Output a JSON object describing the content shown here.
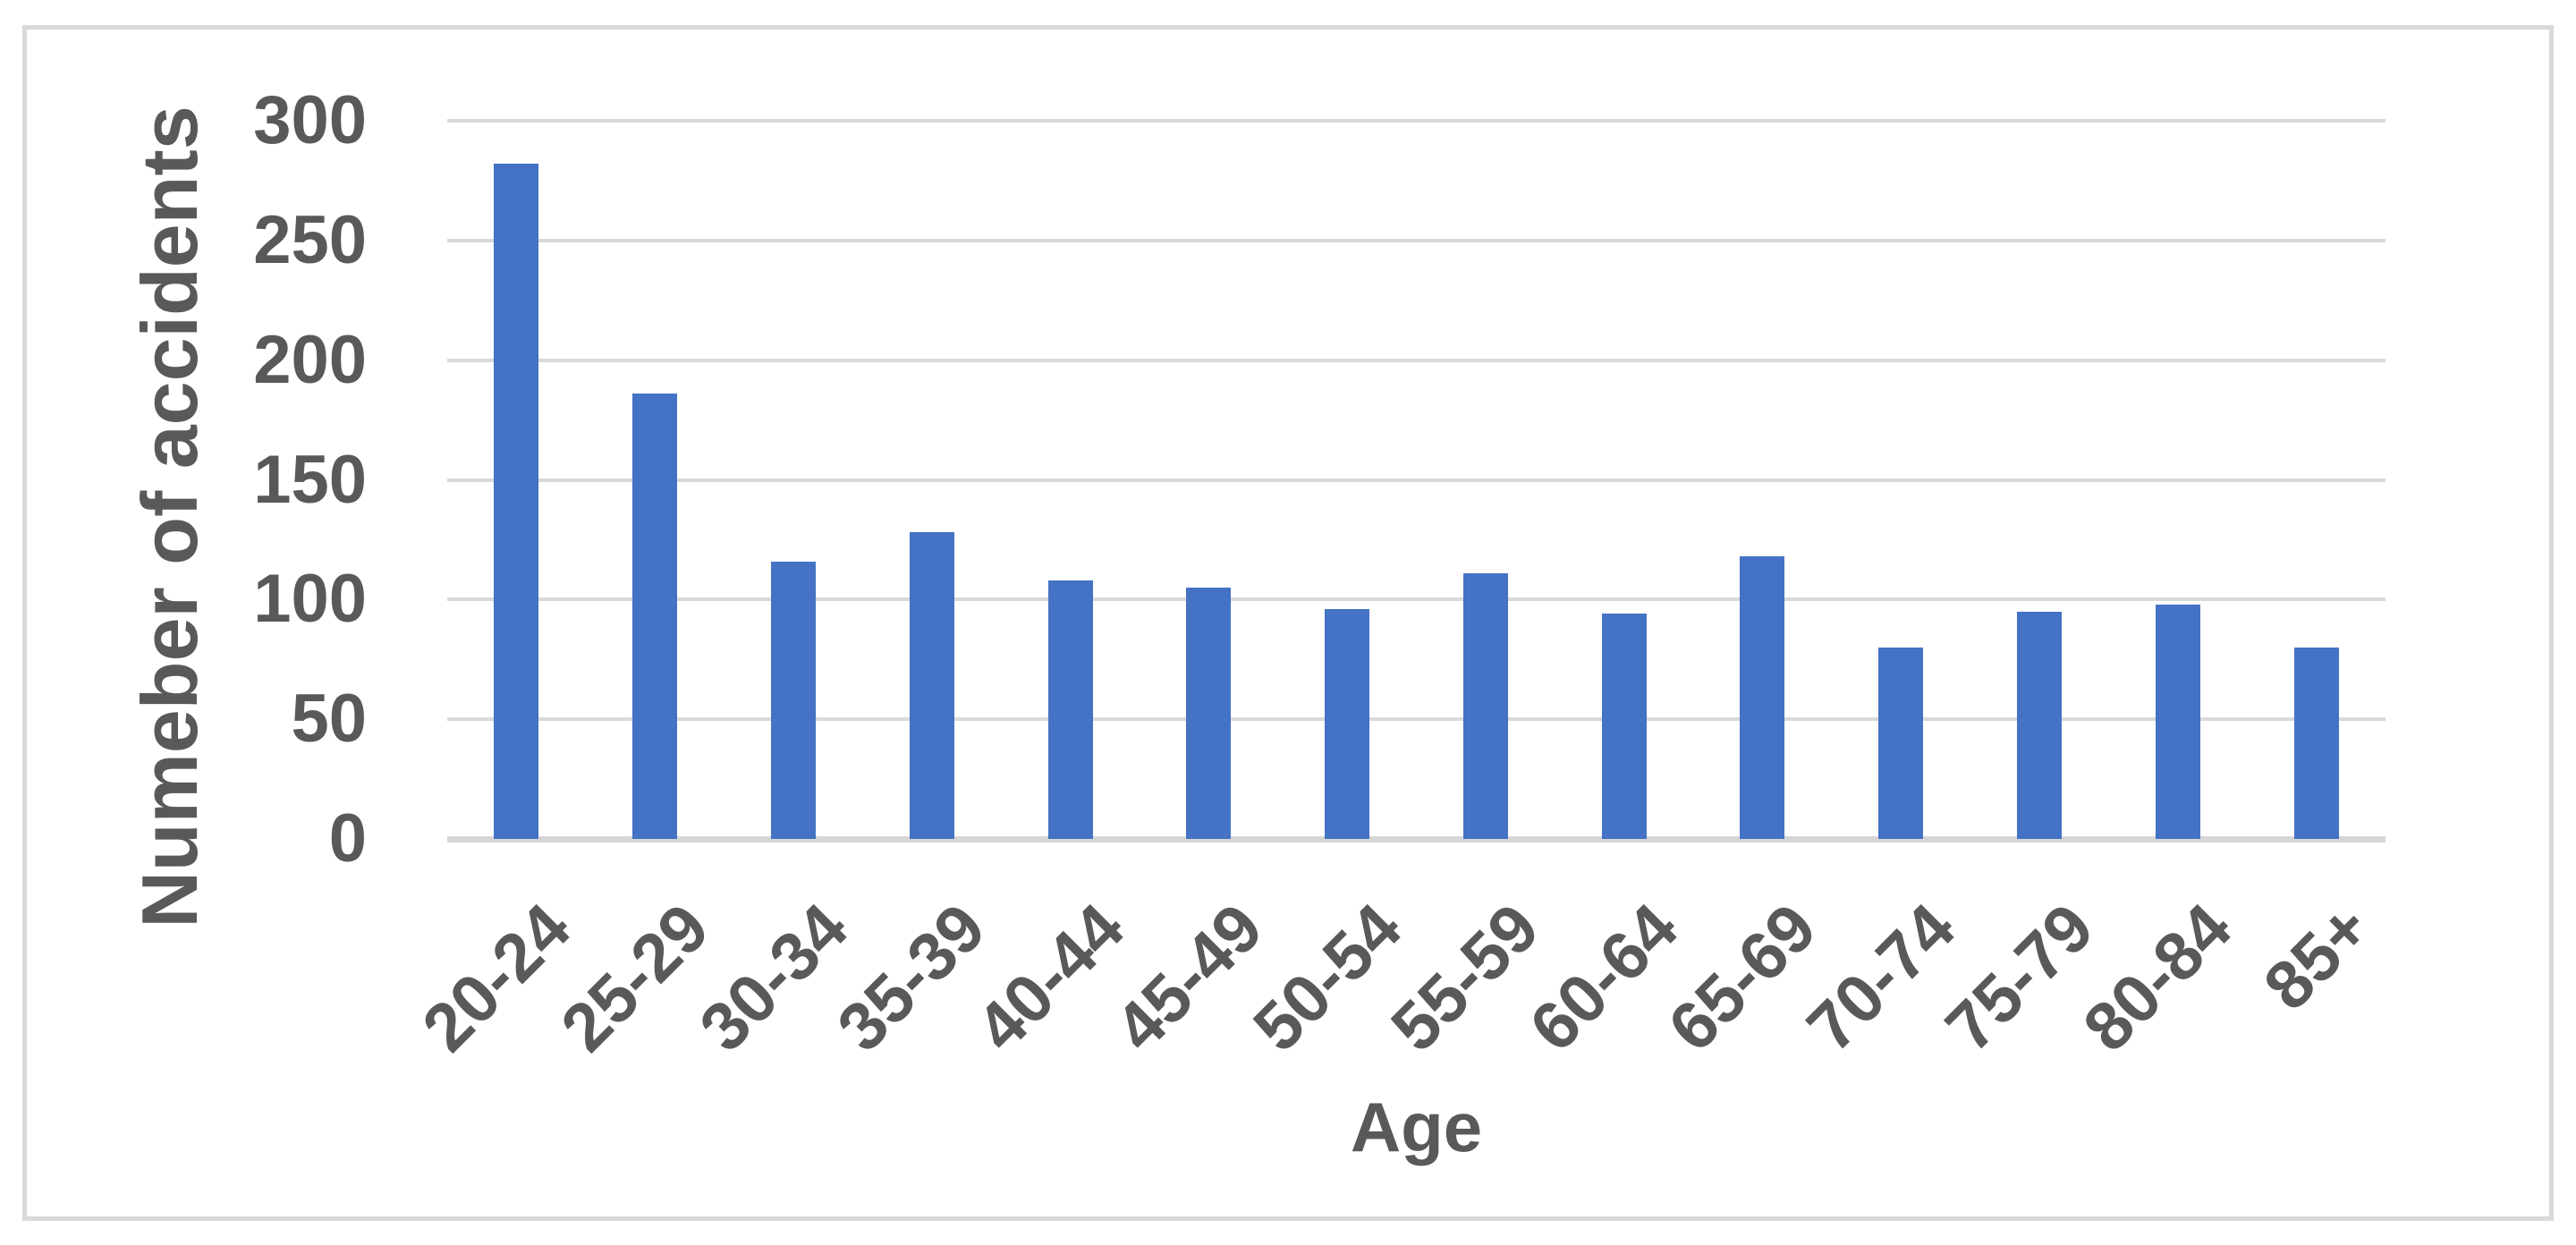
{
  "chart_data": {
    "type": "bar",
    "title": "",
    "categories": [
      "20-24",
      "25-29",
      "30-34",
      "35-39",
      "40-44",
      "45-49",
      "50-54",
      "55-59",
      "60-64",
      "65-69",
      "70-74",
      "75-79",
      "80-84",
      "85+"
    ],
    "values": [
      282,
      186,
      116,
      128,
      108,
      105,
      96,
      111,
      94,
      118,
      80,
      95,
      98,
      80
    ],
    "xlabel": "Age",
    "ylabel": "Numeber of accidents",
    "y_ticks": [
      300,
      250,
      200,
      150,
      100,
      50,
      0
    ],
    "ylim": [
      0,
      300
    ],
    "grid": "horizontal-major",
    "legend": "none",
    "colors": {
      "bar": "#4472C4",
      "gridline": "#D9D9D9",
      "axis_baseline": "#D6D6D6",
      "text": "#595959",
      "frame_border": "#D9D9D9",
      "background": "#FFFFFF"
    }
  }
}
